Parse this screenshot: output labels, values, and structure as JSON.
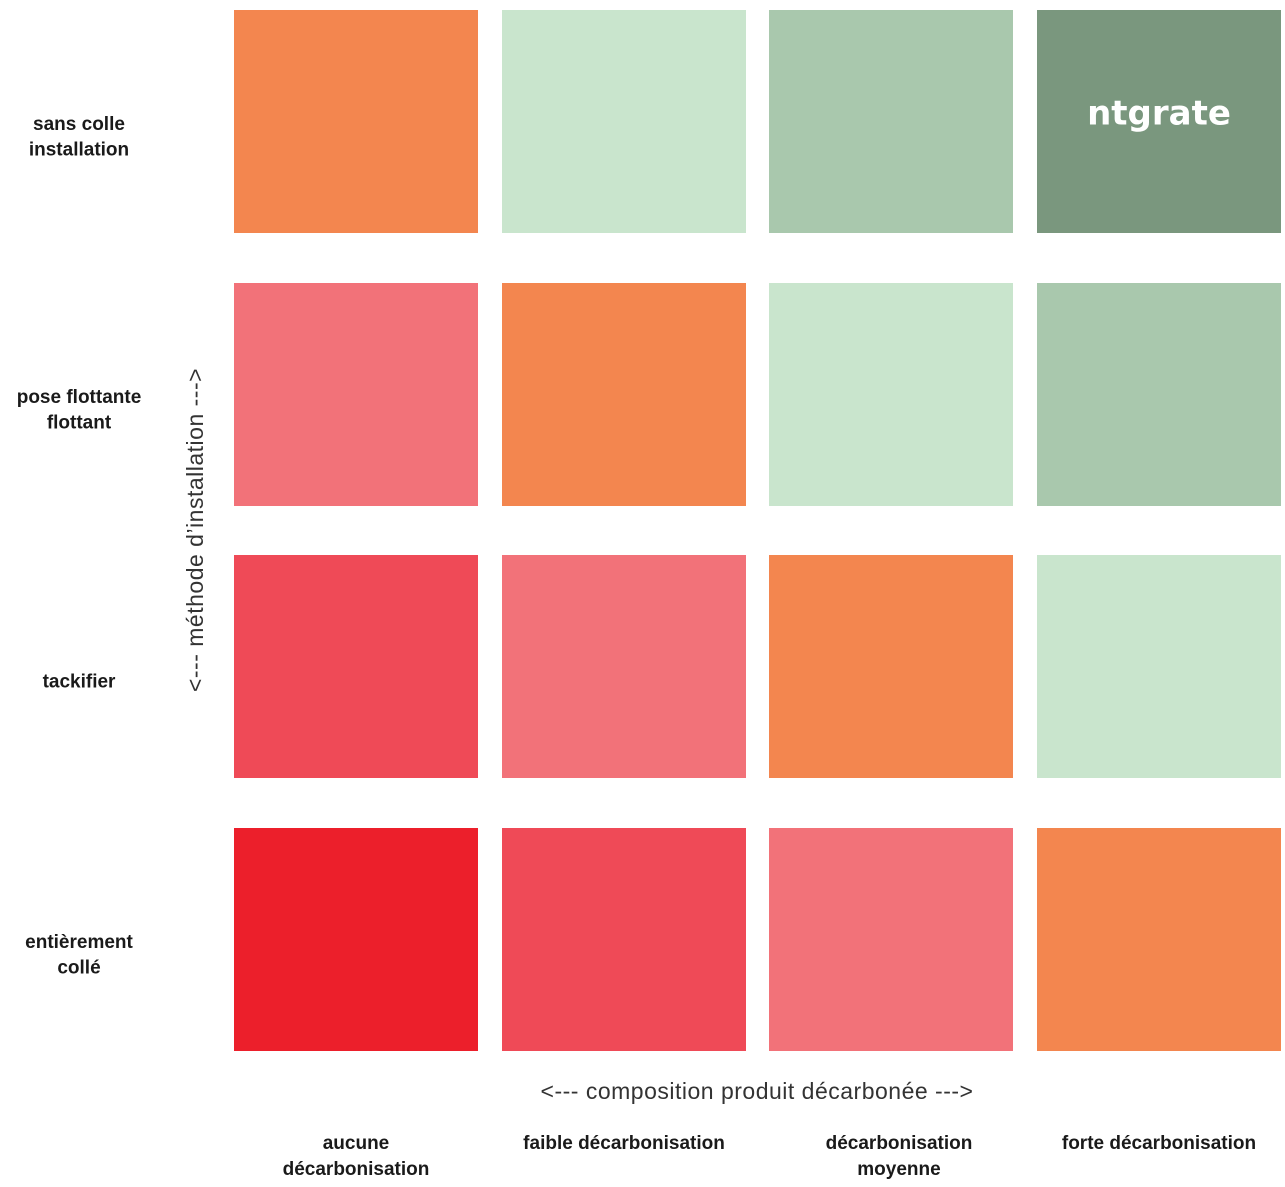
{
  "y_axis_label": "<--- méthode d’installation --->",
  "x_axis_label": "<--- composition produit décarbonée --->",
  "rows": [
    {
      "label": [
        "sans colle",
        "installation"
      ]
    },
    {
      "label": [
        "pose flottante",
        "flottant"
      ]
    },
    {
      "label": [
        "tackifier"
      ]
    },
    {
      "label": [
        "entièrement",
        "collé"
      ]
    }
  ],
  "columns": [
    {
      "label": [
        "aucune",
        "décarbonisation"
      ]
    },
    {
      "label": [
        "faible décarbonisation"
      ]
    },
    {
      "label": [
        "décarbonisation",
        "moyenne"
      ]
    },
    {
      "label": [
        "forte décarbonisation"
      ]
    }
  ],
  "cells": [
    [
      "#f3864f",
      "#c9e5cd",
      "#a9c8ad",
      "#7a977e"
    ],
    [
      "#f27279",
      "#f3864f",
      "#c9e5cd",
      "#a9c8ad"
    ],
    [
      "#ef4a57",
      "#f27279",
      "#f3864f",
      "#c9e5cd"
    ],
    [
      "#ec1f2b",
      "#ef4a57",
      "#f27279",
      "#f3864f"
    ]
  ],
  "brand": {
    "row": 0,
    "column": 3,
    "text": "ntgrate"
  }
}
